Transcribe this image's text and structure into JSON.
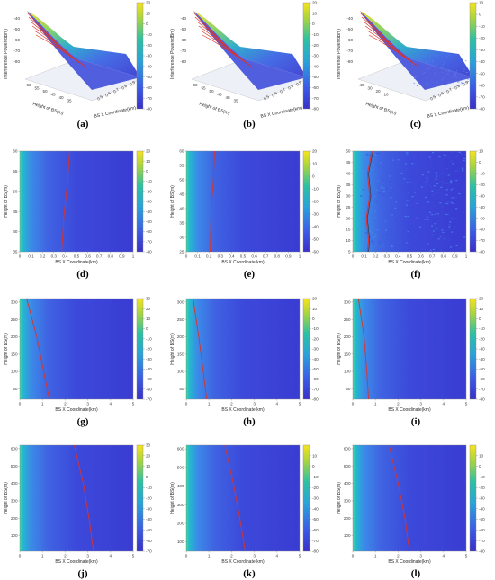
{
  "chart_data": [
    {
      "id": "a",
      "type": "surface3d",
      "panel_label": "(a)",
      "zlabel": "Interference Power(dBm)",
      "ylabel": "Height of BS(m)",
      "xlabel": "BS X Coordinate(km)",
      "zticks": [
        "-40",
        "-50",
        "-60",
        "-70",
        "-80"
      ],
      "yticks": [
        "60",
        "55",
        "50",
        "45",
        "40",
        "35"
      ],
      "xticks": [
        "0.5",
        "0.6",
        "0.7",
        "0.8",
        "0.9",
        "1"
      ],
      "colorbar": {
        "range": [
          -80,
          20
        ],
        "ticks": [
          "20",
          "10",
          "0",
          "-10",
          "-20",
          "-30",
          "-40",
          "-50",
          "-60",
          "-70",
          "-80"
        ]
      }
    },
    {
      "id": "b",
      "type": "surface3d",
      "panel_label": "(b)",
      "zlabel": "Interference Power(dBm)",
      "ylabel": "Height of BS(m)",
      "xlabel": "BS X Coordinate(km)",
      "zticks": [
        "-40",
        "-50",
        "-60",
        "-70",
        "-80"
      ],
      "yticks": [
        "60",
        "55",
        "50",
        "45",
        "40",
        "35"
      ],
      "xticks": [
        "0.5",
        "0.6",
        "0.7",
        "0.8",
        "0.9",
        "1"
      ],
      "colorbar": {
        "range": [
          -80,
          20
        ],
        "ticks": [
          "20",
          "10",
          "0",
          "-10",
          "-20",
          "-30",
          "-40",
          "-50",
          "-60",
          "-70",
          "-80"
        ]
      }
    },
    {
      "id": "c",
      "type": "surface3d",
      "panel_label": "(c)",
      "zlabel": "Interference Power(dBm)",
      "ylabel": "Height of BS(m)",
      "xlabel": "BS X Coordinate(km)",
      "zticks": [
        "-40",
        "-50",
        "-60",
        "-70",
        "-80"
      ],
      "yticks": [
        "40",
        "30",
        "20",
        "10"
      ],
      "xticks": [
        "0.5",
        "0.6",
        "0.7",
        "0.8",
        "0.9",
        "1"
      ],
      "colorbar": {
        "range": [
          -80,
          10
        ],
        "ticks": [
          "10",
          "0",
          "-10",
          "-20",
          "-30",
          "-40",
          "-50",
          "-60",
          "-70",
          "-80"
        ]
      }
    },
    {
      "id": "d",
      "type": "heatmap",
      "panel_label": "(d)",
      "xlabel": "BS X Coordinate(km)",
      "ylabel": "Height of BS(m)",
      "xlim": [
        0,
        1
      ],
      "ylim": [
        35,
        60
      ],
      "xticks": [
        0,
        0.1,
        0.2,
        0.3,
        0.4,
        0.5,
        0.6,
        0.7,
        0.8,
        0.9,
        1
      ],
      "yticks": [
        35,
        40,
        45,
        50,
        55,
        60
      ],
      "contour": [
        [
          0.44,
          60
        ],
        [
          0.42,
          52
        ],
        [
          0.39,
          44
        ],
        [
          0.37,
          35
        ]
      ],
      "colorbar": {
        "range": [
          -80,
          20
        ],
        "ticks": [
          20,
          10,
          0,
          -10,
          -20,
          -30,
          -40,
          -50,
          -60,
          -70,
          -80
        ]
      }
    },
    {
      "id": "e",
      "type": "heatmap",
      "panel_label": "(e)",
      "xlabel": "BS X Coordinate(km)",
      "ylabel": "Height of BS(m)",
      "xlim": [
        0,
        1
      ],
      "ylim": [
        25,
        60
      ],
      "xticks": [
        0,
        0.1,
        0.2,
        0.3,
        0.4,
        0.5,
        0.6,
        0.7,
        0.8,
        0.9,
        1
      ],
      "yticks": [
        25,
        30,
        35,
        40,
        45,
        50,
        55,
        60
      ],
      "contour": [
        [
          0.25,
          60
        ],
        [
          0.24,
          50
        ],
        [
          0.22,
          40
        ],
        [
          0.21,
          25
        ]
      ],
      "colorbar": {
        "range": [
          -60,
          20
        ],
        "ticks": [
          20,
          10,
          0,
          -10,
          -20,
          -30,
          -40,
          -50,
          -60
        ]
      }
    },
    {
      "id": "f",
      "type": "heatmap",
      "panel_label": "(f)",
      "xlabel": "BS X Coordinate(km)",
      "ylabel": "Height of BS(m)",
      "xlim": [
        0,
        1
      ],
      "ylim": [
        5,
        50
      ],
      "xticks": [
        0,
        0.1,
        0.2,
        0.3,
        0.4,
        0.5,
        0.6,
        0.7,
        0.8,
        0.9,
        1
      ],
      "yticks": [
        5,
        10,
        15,
        20,
        25,
        30,
        35,
        40,
        45,
        50
      ],
      "contour": [
        [
          0.17,
          50
        ],
        [
          0.13,
          40
        ],
        [
          0.15,
          30
        ],
        [
          0.12,
          20
        ],
        [
          0.14,
          10
        ],
        [
          0.13,
          5
        ]
      ],
      "colorbar": {
        "range": [
          -80,
          10
        ],
        "ticks": [
          10,
          0,
          -10,
          -20,
          -30,
          -40,
          -50,
          -60,
          -70,
          -80
        ]
      }
    },
    {
      "id": "g",
      "type": "heatmap",
      "panel_label": "(g)",
      "xlabel": "BS X Coordinate(km)",
      "ylabel": "Height of BS(m)",
      "xlim": [
        0,
        5
      ],
      "ylim": [
        20,
        310
      ],
      "xticks": [
        0,
        1,
        2,
        3,
        4,
        5
      ],
      "yticks": [
        50,
        100,
        150,
        200,
        250,
        300
      ],
      "contour": [
        [
          0.3,
          310
        ],
        [
          0.75,
          200
        ],
        [
          1.05,
          100
        ],
        [
          1.3,
          20
        ]
      ],
      "colorbar": {
        "range": [
          -70,
          30
        ],
        "ticks": [
          30,
          20,
          10,
          0,
          -10,
          -20,
          -30,
          -40,
          -50,
          -60,
          -70
        ]
      }
    },
    {
      "id": "h",
      "type": "heatmap",
      "panel_label": "(h)",
      "xlabel": "BS X Coordinate(km)",
      "ylabel": "Height of BS(m)",
      "xlim": [
        0,
        5
      ],
      "ylim": [
        20,
        310
      ],
      "xticks": [
        0,
        1,
        2,
        3,
        4,
        5
      ],
      "yticks": [
        50,
        100,
        150,
        200,
        250,
        300
      ],
      "contour": [
        [
          0.3,
          310
        ],
        [
          0.55,
          200
        ],
        [
          0.75,
          100
        ],
        [
          0.9,
          20
        ]
      ],
      "colorbar": {
        "range": [
          -80,
          20
        ],
        "ticks": [
          20,
          10,
          0,
          -10,
          -20,
          -30,
          -40,
          -50,
          -60,
          -70,
          -80
        ]
      }
    },
    {
      "id": "i",
      "type": "heatmap",
      "panel_label": "(i)",
      "xlabel": "BS X Coordinate(km)",
      "ylabel": "Height of BS(m)",
      "xlim": [
        0,
        5
      ],
      "ylim": [
        20,
        310
      ],
      "xticks": [
        0,
        1,
        2,
        3,
        4,
        5
      ],
      "yticks": [
        50,
        100,
        150,
        200,
        250,
        300
      ],
      "contour": [
        [
          0.25,
          310
        ],
        [
          0.5,
          200
        ],
        [
          0.62,
          100
        ],
        [
          0.7,
          20
        ]
      ],
      "colorbar": {
        "range": [
          -80,
          20
        ],
        "ticks": [
          20,
          10,
          0,
          -10,
          -20,
          -30,
          -40,
          -50,
          -60,
          -70,
          -80
        ]
      }
    },
    {
      "id": "j",
      "type": "heatmap",
      "panel_label": "(j)",
      "xlabel": "BS X Coordinate(km)",
      "ylabel": "Height of BS(m)",
      "xlim": [
        0,
        5
      ],
      "ylim": [
        10,
        620
      ],
      "xticks": [
        0,
        1,
        2,
        3,
        4,
        5
      ],
      "yticks": [
        100,
        200,
        300,
        400,
        500,
        600
      ],
      "contour": [
        [
          2.4,
          620
        ],
        [
          2.8,
          400
        ],
        [
          3.05,
          200
        ],
        [
          3.25,
          10
        ]
      ],
      "colorbar": {
        "range": [
          -70,
          30
        ],
        "ticks": [
          30,
          20,
          10,
          0,
          -10,
          -20,
          -30,
          -40,
          -50,
          -60,
          -70
        ]
      }
    },
    {
      "id": "k",
      "type": "heatmap",
      "panel_label": "(k)",
      "xlabel": "BS X Coordinate(km)",
      "ylabel": "Height of BS(m)",
      "xlim": [
        0,
        5
      ],
      "ylim": [
        50,
        620
      ],
      "xticks": [
        0,
        1,
        2,
        3,
        4,
        5
      ],
      "yticks": [
        100,
        200,
        300,
        400,
        500,
        600
      ],
      "contour": [
        [
          1.7,
          620
        ],
        [
          2.1,
          400
        ],
        [
          2.4,
          200
        ],
        [
          2.6,
          50
        ]
      ],
      "colorbar": {
        "range": [
          -80,
          20
        ],
        "ticks": [
          10,
          0,
          -10,
          -20,
          -30,
          -40,
          -50,
          -60,
          -70,
          -80
        ]
      }
    },
    {
      "id": "l",
      "type": "heatmap",
      "panel_label": "(l)",
      "xlabel": "BS X Coordinate(km)",
      "ylabel": "Height of BS(m)",
      "xlim": [
        0,
        5
      ],
      "ylim": [
        10,
        620
      ],
      "xticks": [
        0,
        1,
        2,
        3,
        4,
        5
      ],
      "yticks": [
        100,
        200,
        300,
        400,
        500,
        600
      ],
      "contour": [
        [
          1.6,
          620
        ],
        [
          2.0,
          400
        ],
        [
          2.3,
          200
        ],
        [
          2.5,
          10
        ]
      ],
      "colorbar": {
        "range": [
          -80,
          20
        ],
        "ticks": [
          10,
          0,
          -10,
          -20,
          -30,
          -40,
          -50,
          -60,
          -70,
          -80
        ]
      }
    }
  ],
  "colors": {
    "background": "#ffffff",
    "low": "#3a3bd6",
    "mid_low": "#3f6fe8",
    "mid": "#23b7c6",
    "high": "#a9d84a",
    "top": "#f5e21e",
    "contour": "#d9342b",
    "axis": "#9a9a9a"
  }
}
